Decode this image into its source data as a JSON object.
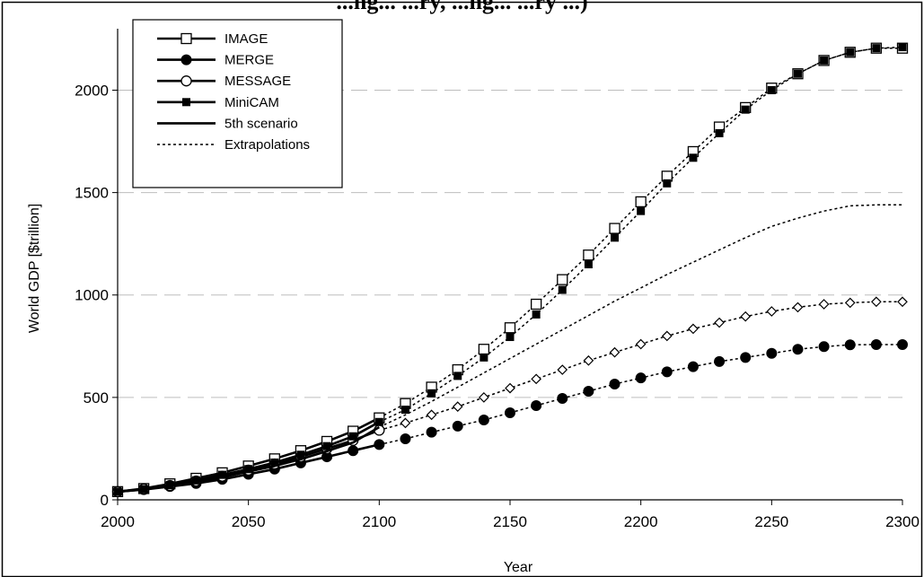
{
  "chart_data": {
    "type": "line",
    "title": "...ng... ...ry, ...ng... ...ry ...)",
    "xlabel": "Year",
    "ylabel": "World GDP [$trillion]",
    "xlim": [
      2000,
      2300
    ],
    "ylim": [
      0,
      2300
    ],
    "xticks": [
      "2000",
      "2050",
      "2100",
      "2150",
      "2200",
      "2250",
      "2300"
    ],
    "yticks": [
      "0",
      "500",
      "1000",
      "1500",
      "2000"
    ],
    "grid": "horizontal dashed",
    "legend_position": "top-left",
    "legend": [
      {
        "label": "IMAGE",
        "style": "solid",
        "marker": "open-square"
      },
      {
        "label": "MERGE",
        "style": "solid",
        "marker": "filled-circle"
      },
      {
        "label": "MESSAGE",
        "style": "solid",
        "marker": "open-circle"
      },
      {
        "label": "MiniCAM",
        "style": "solid",
        "marker": "filled-square"
      },
      {
        "label": "5th scenario",
        "style": "solid",
        "marker": "none"
      },
      {
        "label": "Extrapolations",
        "style": "dotted",
        "marker": "none"
      }
    ],
    "series": [
      {
        "name": "IMAGE",
        "marker": "open-square",
        "x": [
          2000,
          2010,
          2020,
          2030,
          2040,
          2050,
          2060,
          2070,
          2080,
          2090,
          2100
        ],
        "y": [
          40,
          55,
          78,
          105,
          132,
          165,
          200,
          240,
          285,
          335,
          400
        ]
      },
      {
        "name": "MERGE",
        "marker": "filled-circle",
        "x": [
          2000,
          2010,
          2020,
          2030,
          2040,
          2050,
          2060,
          2070,
          2080,
          2090,
          2100
        ],
        "y": [
          40,
          50,
          65,
          80,
          100,
          125,
          150,
          180,
          210,
          240,
          270
        ]
      },
      {
        "name": "MESSAGE",
        "marker": "open-circle",
        "x": [
          2000,
          2010,
          2020,
          2030,
          2040,
          2050,
          2060,
          2070,
          2080,
          2090,
          2100
        ],
        "y": [
          40,
          53,
          70,
          92,
          115,
          145,
          175,
          210,
          250,
          290,
          340
        ]
      },
      {
        "name": "MiniCAM",
        "marker": "filled-square",
        "x": [
          2000,
          2010,
          2020,
          2030,
          2040,
          2050,
          2060,
          2070,
          2080,
          2090,
          2100
        ],
        "y": [
          40,
          52,
          72,
          95,
          122,
          150,
          182,
          220,
          262,
          310,
          380
        ]
      },
      {
        "name": "5th scenario",
        "marker": "none",
        "x": [
          2000,
          2010,
          2020,
          2030,
          2040,
          2050,
          2060,
          2070,
          2080,
          2090,
          2100
        ],
        "y": [
          40,
          51,
          68,
          88,
          110,
          138,
          165,
          198,
          238,
          280,
          355
        ]
      },
      {
        "name": "IMAGE extrapolation",
        "marker": "open-square",
        "x": [
          2100,
          2110,
          2120,
          2130,
          2140,
          2150,
          2160,
          2170,
          2180,
          2190,
          2200,
          2210,
          2220,
          2230,
          2240,
          2250,
          2260,
          2270,
          2280,
          2290,
          2300
        ],
        "y": [
          400,
          470,
          550,
          635,
          735,
          840,
          955,
          1075,
          1195,
          1325,
          1455,
          1580,
          1700,
          1820,
          1915,
          2010,
          2080,
          2145,
          2185,
          2205,
          2205
        ]
      },
      {
        "name": "MiniCAM extrapolation",
        "marker": "filled-square",
        "x": [
          2100,
          2110,
          2120,
          2130,
          2140,
          2150,
          2160,
          2170,
          2180,
          2190,
          2200,
          2210,
          2220,
          2230,
          2240,
          2250,
          2260,
          2270,
          2280,
          2290,
          2300
        ],
        "y": [
          380,
          440,
          520,
          605,
          695,
          795,
          905,
          1025,
          1150,
          1280,
          1410,
          1545,
          1670,
          1790,
          1905,
          2000,
          2080,
          2145,
          2185,
          2205,
          2210
        ]
      },
      {
        "name": "5th scenario extrapolation",
        "marker": "none",
        "x": [
          2100,
          2110,
          2120,
          2130,
          2140,
          2150,
          2160,
          2170,
          2180,
          2190,
          2200,
          2210,
          2220,
          2230,
          2240,
          2250,
          2260,
          2270,
          2280,
          2290,
          2300
        ],
        "y": [
          355,
          415,
          480,
          550,
          620,
          690,
          760,
          830,
          900,
          970,
          1035,
          1100,
          1160,
          1220,
          1280,
          1335,
          1375,
          1410,
          1435,
          1440,
          1440
        ]
      },
      {
        "name": "MESSAGE extrapolation",
        "marker": "open-diamond",
        "x": [
          2100,
          2110,
          2120,
          2130,
          2140,
          2150,
          2160,
          2170,
          2180,
          2190,
          2200,
          2210,
          2220,
          2230,
          2240,
          2250,
          2260,
          2270,
          2280,
          2290,
          2300
        ],
        "y": [
          340,
          375,
          415,
          455,
          500,
          545,
          590,
          635,
          680,
          720,
          760,
          800,
          835,
          865,
          895,
          920,
          940,
          955,
          962,
          967,
          967
        ]
      },
      {
        "name": "MERGE extrapolation",
        "marker": "filled-circle",
        "x": [
          2100,
          2110,
          2120,
          2130,
          2140,
          2150,
          2160,
          2170,
          2180,
          2190,
          2200,
          2210,
          2220,
          2230,
          2240,
          2250,
          2260,
          2270,
          2280,
          2290,
          2300
        ],
        "y": [
          270,
          298,
          330,
          360,
          390,
          425,
          460,
          495,
          530,
          565,
          595,
          625,
          650,
          675,
          695,
          715,
          735,
          748,
          757,
          758,
          758
        ]
      }
    ]
  }
}
